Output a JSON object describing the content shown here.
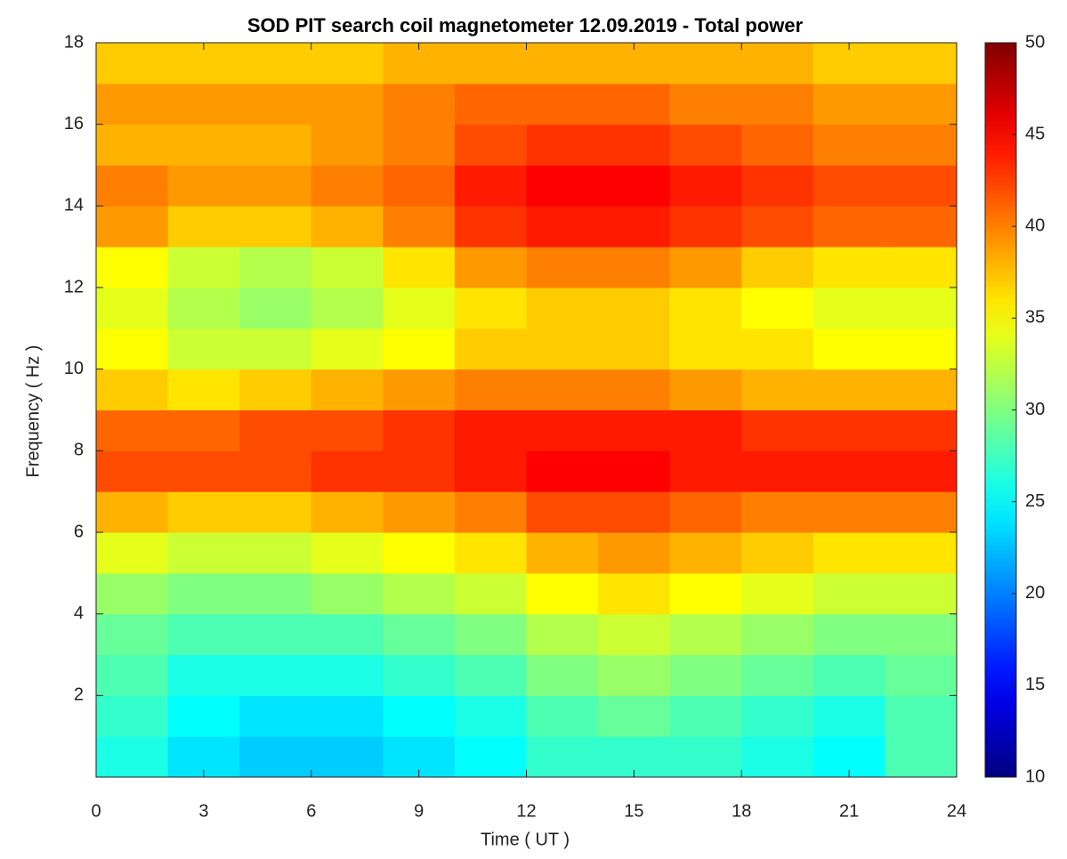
{
  "chart_data": {
    "type": "spectrogram",
    "title": "SOD PIT search coil magnetometer 12.09.2019 - Total power",
    "xlabel": "Time ( UT )",
    "ylabel": "Frequency ( Hz )",
    "colormap": "jet",
    "x_bins": [
      0,
      2,
      4,
      6,
      8,
      10,
      12,
      14,
      16,
      18,
      20,
      22,
      24
    ],
    "y_bins": [
      0,
      1,
      2,
      3,
      4,
      5,
      6,
      7,
      8,
      9,
      10,
      11,
      12,
      13,
      14,
      15,
      16,
      17,
      18
    ],
    "values": [
      [
        26,
        24,
        23,
        23,
        24,
        25,
        27,
        27,
        27,
        26,
        25,
        28
      ],
      [
        27,
        25,
        24,
        24,
        25,
        26,
        28,
        29,
        28,
        27,
        26,
        28
      ],
      [
        28,
        26,
        26,
        26,
        27,
        28,
        30,
        31,
        30,
        29,
        28,
        29
      ],
      [
        29,
        28,
        28,
        28,
        29,
        30,
        32,
        33,
        32,
        31,
        30,
        30
      ],
      [
        31,
        30,
        30,
        31,
        32,
        33,
        35,
        36,
        35,
        34,
        33,
        33
      ],
      [
        34,
        33,
        33,
        34,
        35,
        36,
        38,
        39,
        38,
        37,
        36,
        36
      ],
      [
        38,
        37,
        37,
        38,
        39,
        40,
        42,
        42,
        41,
        40,
        40,
        40
      ],
      [
        42,
        42,
        42,
        43,
        43,
        44,
        45,
        45,
        44,
        44,
        44,
        44
      ],
      [
        41,
        41,
        42,
        42,
        43,
        44,
        44,
        44,
        44,
        43,
        43,
        43
      ],
      [
        37,
        36,
        37,
        38,
        39,
        40,
        40,
        40,
        39,
        38,
        38,
        38
      ],
      [
        35,
        33,
        33,
        34,
        35,
        37,
        37,
        37,
        36,
        36,
        35,
        35
      ],
      [
        34,
        32,
        31,
        32,
        34,
        36,
        37,
        37,
        36,
        35,
        34,
        34
      ],
      [
        35,
        33,
        32,
        33,
        36,
        39,
        40,
        40,
        39,
        37,
        36,
        36
      ],
      [
        39,
        37,
        37,
        38,
        40,
        43,
        44,
        44,
        43,
        42,
        41,
        41
      ],
      [
        40,
        39,
        39,
        40,
        41,
        44,
        45,
        45,
        44,
        43,
        42,
        42
      ],
      [
        38,
        38,
        38,
        39,
        40,
        42,
        43,
        43,
        42,
        41,
        40,
        40
      ],
      [
        39,
        39,
        39,
        39,
        40,
        41,
        41,
        41,
        40,
        40,
        39,
        39
      ],
      [
        37,
        37,
        37,
        37,
        38,
        38,
        38,
        38,
        38,
        38,
        37,
        37
      ]
    ],
    "xlim": [
      0,
      24
    ],
    "xticks": [
      0,
      3,
      6,
      9,
      12,
      15,
      18,
      21,
      24
    ],
    "ylim": [
      0,
      18
    ],
    "yticks": [
      2,
      4,
      6,
      8,
      10,
      12,
      14,
      16,
      18
    ],
    "clim": [
      10,
      50
    ],
    "cticks": [
      10,
      15,
      20,
      25,
      30,
      35,
      40,
      45,
      50
    ]
  }
}
